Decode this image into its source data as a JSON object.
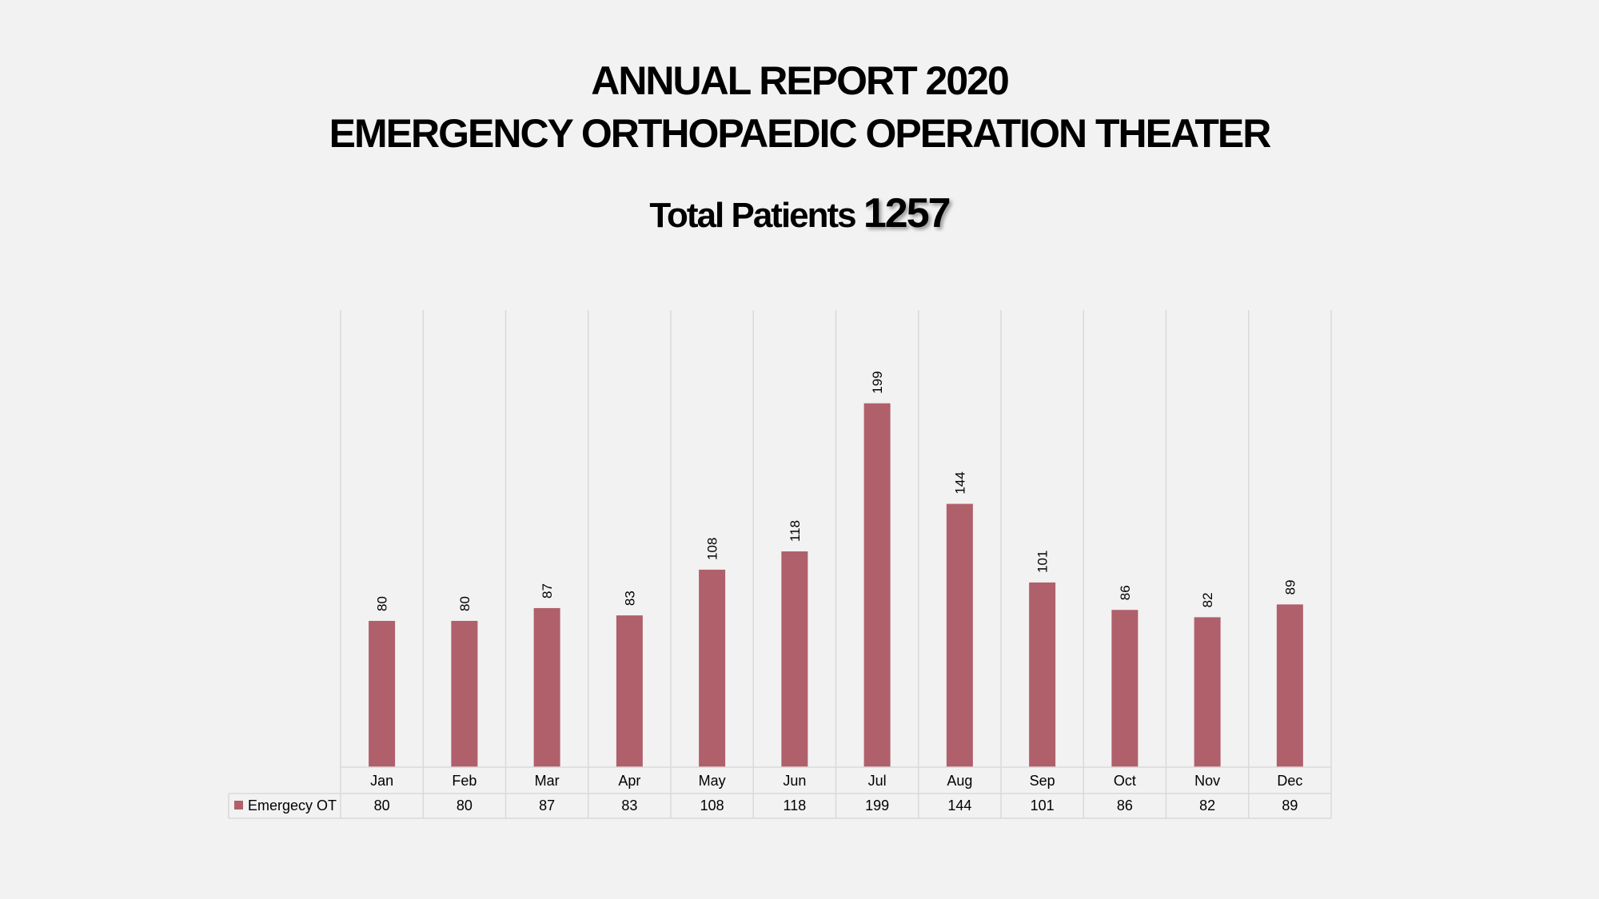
{
  "slide": {
    "title_line1": "ANNUAL REPORT 2020",
    "title_line2": "EMERGENCY ORTHOPAEDIC OPERATION THEATER",
    "total_label": "Total Patients",
    "total_value": "1257"
  },
  "chart_data": {
    "type": "bar",
    "categories": [
      "Jan",
      "Feb",
      "Mar",
      "Apr",
      "May",
      "Jun",
      "Jul",
      "Aug",
      "Sep",
      "Oct",
      "Nov",
      "Dec"
    ],
    "series": [
      {
        "name": "Emergecy OT",
        "values": [
          80,
          80,
          87,
          83,
          108,
          118,
          199,
          144,
          101,
          86,
          82,
          89
        ]
      }
    ],
    "title": "",
    "xlabel": "",
    "ylabel": "",
    "ylim": [
      0,
      250
    ],
    "grid": "vertical",
    "legend": "data-table-left",
    "data_labels": true,
    "data_table": true,
    "colors": {
      "bar": "#b0606b",
      "grid": "#d9d9d9",
      "background": "#f2f2f2"
    }
  }
}
